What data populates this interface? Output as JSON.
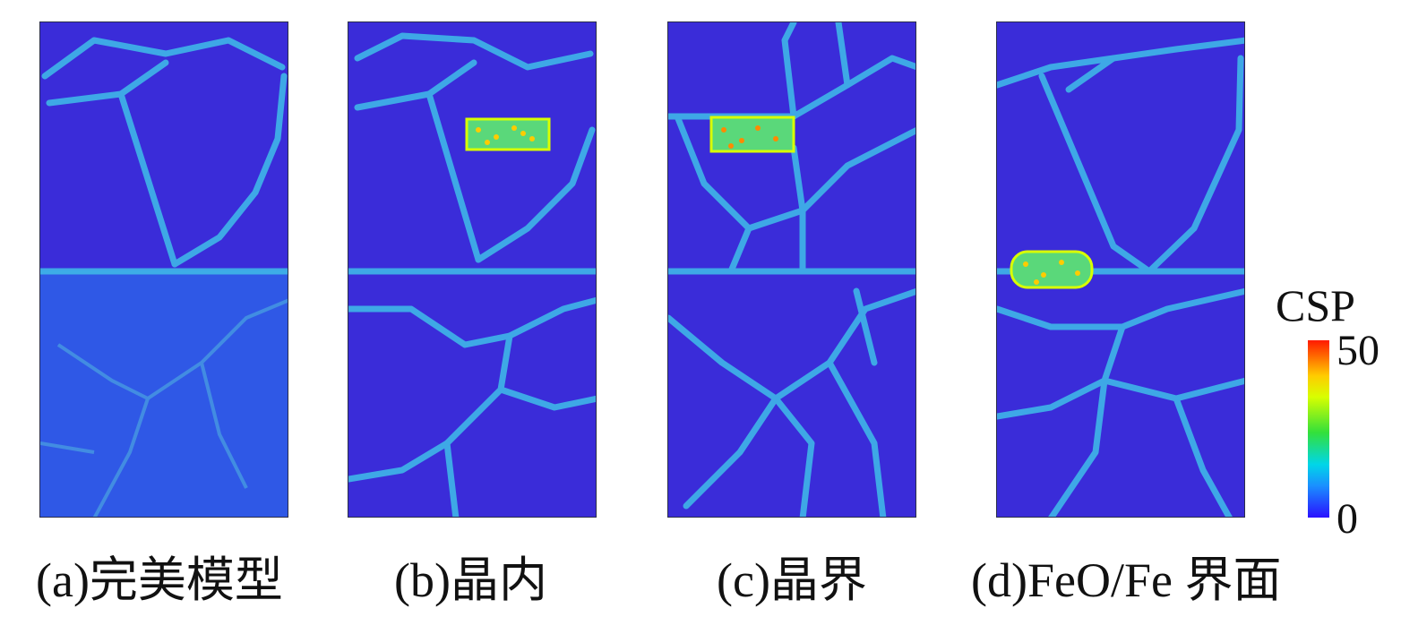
{
  "panels": [
    {
      "id": "a",
      "caption": "(a)完美模型",
      "defect": "none"
    },
    {
      "id": "b",
      "caption": "(b)晶内",
      "defect": "grain-interior"
    },
    {
      "id": "c",
      "caption": "(c)晶界",
      "defect": "grain-boundary"
    },
    {
      "id": "d",
      "caption": "(d)FeO/Fe 界面",
      "defect": "interface"
    }
  ],
  "colorbar": {
    "title": "CSP",
    "max_label": "50",
    "min_label": "0",
    "colors": {
      "low": "#2a10ff",
      "mid": "#33e03a",
      "high": "#ff1a00"
    }
  },
  "colors": {
    "grain": "#3a2cd9",
    "grain_substrate_a": "#2f58e6",
    "boundary": "#3fb6e8"
  }
}
